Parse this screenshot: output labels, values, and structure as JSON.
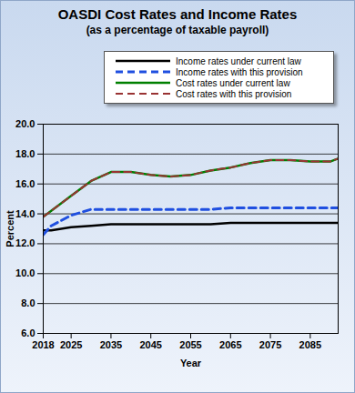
{
  "chart_data": {
    "type": "line",
    "title": "OASDI Cost Rates and Income Rates",
    "subtitle": "(as a percentage of taxable payroll)",
    "x_label": "Year",
    "y_label": "Percent",
    "x": [
      2018,
      2020,
      2025,
      2030,
      2035,
      2040,
      2045,
      2050,
      2055,
      2060,
      2065,
      2070,
      2075,
      2080,
      2085,
      2090,
      2092
    ],
    "series": [
      {
        "name": "Income rates under current law",
        "color": "#000000",
        "line_style": "solid",
        "values": [
          12.9,
          12.9,
          13.1,
          13.2,
          13.3,
          13.3,
          13.3,
          13.3,
          13.3,
          13.3,
          13.4,
          13.4,
          13.4,
          13.4,
          13.4,
          13.4,
          13.4
        ]
      },
      {
        "name": "Income rates with this provision",
        "color": "#1f4fe0",
        "line_style": "dashed",
        "values": [
          12.6,
          13.2,
          13.9,
          14.3,
          14.3,
          14.3,
          14.3,
          14.3,
          14.3,
          14.3,
          14.4,
          14.4,
          14.4,
          14.4,
          14.4,
          14.4,
          14.4
        ]
      },
      {
        "name": "Cost rates under current law",
        "color": "#008000",
        "line_style": "solid",
        "values": [
          13.8,
          14.2,
          15.2,
          16.2,
          16.8,
          16.8,
          16.6,
          16.5,
          16.6,
          16.9,
          17.1,
          17.4,
          17.6,
          17.6,
          17.5,
          17.5,
          17.7
        ]
      },
      {
        "name": "Cost rates with this provision",
        "color": "#993333",
        "line_style": "dashed",
        "values": [
          13.8,
          14.2,
          15.2,
          16.2,
          16.8,
          16.8,
          16.6,
          16.5,
          16.6,
          16.9,
          17.1,
          17.4,
          17.6,
          17.6,
          17.5,
          17.5,
          17.7
        ]
      }
    ],
    "xlim": [
      2018,
      2092
    ],
    "xticks": [
      2018,
      2025,
      2035,
      2045,
      2055,
      2065,
      2075,
      2085
    ],
    "ylim": [
      6,
      20
    ],
    "yticks": [
      {
        "value": 6,
        "label": "6.0"
      },
      {
        "value": 8,
        "label": "8.0"
      },
      {
        "value": 10,
        "label": "10.0"
      },
      {
        "value": 12,
        "label": "12.0"
      },
      {
        "value": 14,
        "label": "14.0"
      },
      {
        "value": 16,
        "label": "16.0"
      },
      {
        "value": 18,
        "label": "18.0"
      },
      {
        "value": 20,
        "label": "20.0"
      }
    ],
    "grid": true,
    "legend": "top"
  }
}
